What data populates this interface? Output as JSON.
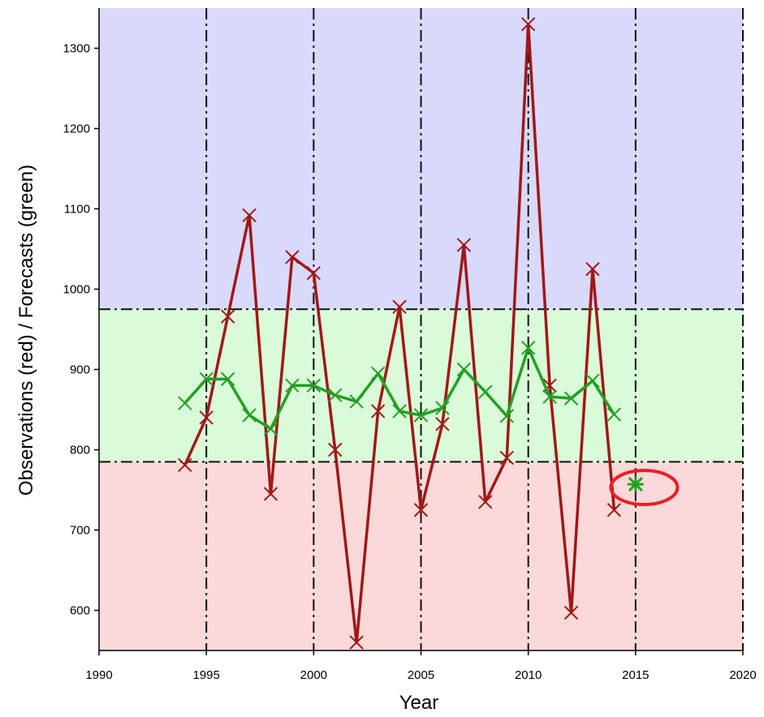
{
  "chart_data": {
    "type": "line",
    "xlabel": "Year",
    "ylabel": "Observations (red) / Forecasts (green)",
    "xlim": [
      1990,
      2020
    ],
    "ylim": [
      550,
      1350
    ],
    "x_ticks": [
      1990,
      1995,
      2000,
      2005,
      2010,
      2015,
      2020
    ],
    "y_ticks": [
      600,
      700,
      800,
      900,
      1000,
      1100,
      1200,
      1300
    ],
    "background_bands": [
      {
        "from": 975,
        "to": 1350,
        "color": "#d9d9fb"
      },
      {
        "from": 785,
        "to": 975,
        "color": "#d9fbd9"
      },
      {
        "from": 550,
        "to": 785,
        "color": "#fbd9d9"
      }
    ],
    "reference_lines": {
      "horizontal": [
        785,
        975
      ],
      "vertical": [
        1995,
        2000,
        2005,
        2010,
        2015,
        2020
      ],
      "style": "dash-dot"
    },
    "series": [
      {
        "color": "#a01818",
        "marker": "x",
        "x": [
          1994,
          1995,
          1996,
          1997,
          1998,
          1999,
          2000,
          2001,
          2002,
          2003,
          2004,
          2005,
          2006,
          2007,
          2008,
          2009,
          2010,
          2011,
          2012,
          2013,
          2014
        ],
        "y": [
          781,
          840,
          966,
          1092,
          745,
          1040,
          1020,
          800,
          560,
          848,
          978,
          725,
          832,
          1055,
          735,
          790,
          1330,
          880,
          597,
          1025,
          725
        ]
      },
      {
        "color": "#22a022",
        "marker": "x",
        "x": [
          1994,
          1995,
          1996,
          1997,
          1998,
          1999,
          2000,
          2001,
          2002,
          2003,
          2004,
          2005,
          2006,
          2007,
          2008,
          2009,
          2010,
          2011,
          2012,
          2013,
          2014
        ],
        "y": [
          858,
          888,
          888,
          843,
          826,
          880,
          880,
          868,
          860,
          895,
          848,
          843,
          852,
          900,
          872,
          842,
          927,
          866,
          864,
          886,
          844
        ]
      },
      {
        "color": "#22a022",
        "marker": "star",
        "x": [
          2015
        ],
        "y": [
          757
        ]
      }
    ],
    "annotations": [
      {
        "type": "ellipse",
        "x": 2015.4,
        "y": 753,
        "color": "#ee1c24"
      }
    ]
  }
}
